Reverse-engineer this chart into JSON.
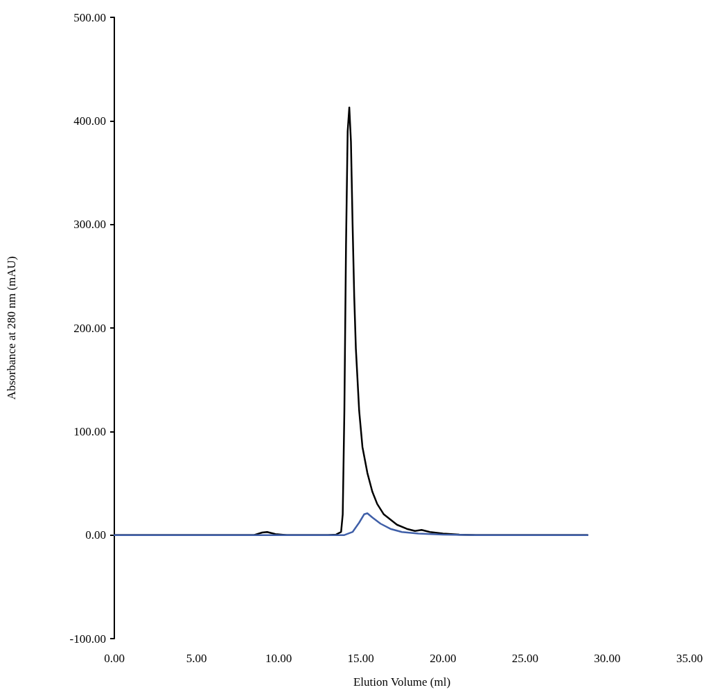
{
  "chart_data": {
    "type": "line",
    "xlabel": "Elution Volume (ml)",
    "ylabel": "Absorbance at 280 nm (mAU)",
    "xlim": [
      0,
      35
    ],
    "ylim": [
      -100,
      500
    ],
    "xticks": [
      {
        "value": 0,
        "label": "0.00"
      },
      {
        "value": 5,
        "label": "5.00"
      },
      {
        "value": 10,
        "label": "10.00"
      },
      {
        "value": 15,
        "label": "15.00"
      },
      {
        "value": 20,
        "label": "20.00"
      },
      {
        "value": 25,
        "label": "25.00"
      },
      {
        "value": 30,
        "label": "30.00"
      },
      {
        "value": 35,
        "label": "35.00"
      }
    ],
    "yticks": [
      {
        "value": -100,
        "label": "-100.00"
      },
      {
        "value": 0,
        "label": "0.00"
      },
      {
        "value": 100,
        "label": "100.00"
      },
      {
        "value": 200,
        "label": "200.00"
      },
      {
        "value": 300,
        "label": "300.00"
      },
      {
        "value": 400,
        "label": "400.00"
      },
      {
        "value": 500,
        "label": "500.00"
      }
    ],
    "grid": false,
    "legend": false,
    "marker": "none",
    "line_style": "solid",
    "series": [
      {
        "color": "#000000",
        "x": [
          0,
          8.5,
          9.0,
          9.3,
          9.8,
          10.5,
          13.0,
          13.5,
          13.8,
          13.9,
          14.0,
          14.1,
          14.2,
          14.3,
          14.4,
          14.5,
          14.6,
          14.7,
          14.9,
          15.1,
          15.4,
          15.7,
          16.0,
          16.4,
          16.8,
          17.2,
          17.8,
          18.3,
          18.7,
          19.2,
          20,
          21,
          22,
          28.8
        ],
        "values": [
          0,
          0,
          2.5,
          3,
          1,
          0,
          0,
          0.5,
          3,
          20,
          120,
          280,
          390,
          413,
          380,
          300,
          230,
          180,
          120,
          85,
          60,
          42,
          30,
          20,
          15,
          10,
          6,
          4,
          5,
          3,
          1.5,
          0.5,
          0,
          0
        ]
      },
      {
        "color": "#3f5fa8",
        "x": [
          0,
          14.0,
          14.5,
          14.9,
          15.2,
          15.4,
          15.7,
          16.2,
          16.8,
          17.5,
          18.5,
          20,
          22,
          28.8
        ],
        "values": [
          0,
          0,
          3,
          12,
          20,
          21,
          17,
          11,
          6,
          3,
          1.5,
          0.5,
          0,
          0
        ]
      }
    ]
  }
}
